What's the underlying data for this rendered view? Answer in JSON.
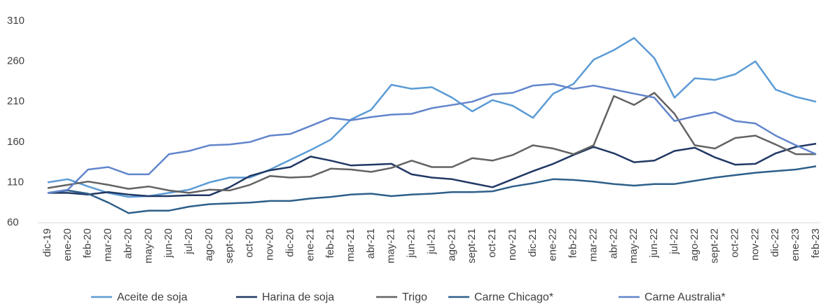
{
  "chart_data": {
    "type": "line",
    "categories": [
      "dic-19",
      "ene-20",
      "feb-20",
      "mar-20",
      "abr-20",
      "may-20",
      "jun-20",
      "jul-20",
      "ago-20",
      "sept-20",
      "oct-20",
      "nov-20",
      "dic-20",
      "ene-21",
      "feb-21",
      "mar-21",
      "abr-21",
      "may-21",
      "jun-21",
      "jul-21",
      "ago-21",
      "sept-21",
      "oct-21",
      "nov-21",
      "dic-21",
      "ene-22",
      "feb-22",
      "mar-22",
      "abr-22",
      "may-22",
      "jun-22",
      "jul-22",
      "ago-22",
      "sept-22",
      "oct-22",
      "nov-22",
      "dic-22",
      "ene-23",
      "feb-23"
    ],
    "series": [
      {
        "name": "Aceite de soja",
        "color": "#5b9bd5",
        "values": [
          110,
          114,
          105,
          97,
          92,
          93,
          97,
          101,
          110,
          116,
          116,
          126,
          138,
          150,
          163,
          188,
          200,
          231,
          226,
          228,
          215,
          198,
          212,
          205,
          190,
          220,
          232,
          262,
          274,
          289,
          264,
          215,
          239,
          237,
          244,
          260,
          225,
          216,
          210
        ]
      },
      {
        "name": "Harina de soja",
        "color": "#203864",
        "values": [
          97,
          97,
          95,
          98,
          95,
          93,
          93,
          94,
          94,
          104,
          118,
          125,
          129,
          142,
          137,
          131,
          132,
          133,
          120,
          116,
          114,
          109,
          104,
          114,
          124,
          133,
          144,
          154,
          146,
          135,
          137,
          149,
          153,
          141,
          132,
          133,
          146,
          154,
          158
        ]
      },
      {
        "name": "Trigo",
        "color": "#636363",
        "values": [
          103,
          107,
          111,
          107,
          102,
          105,
          100,
          97,
          101,
          100,
          107,
          118,
          116,
          117,
          127,
          126,
          123,
          128,
          137,
          129,
          129,
          140,
          137,
          144,
          156,
          152,
          145,
          156,
          217,
          206,
          221,
          195,
          156,
          152,
          165,
          168,
          157,
          145,
          145
        ]
      },
      {
        "name": "Carne Chicago*",
        "color": "#2e5f8a",
        "values": [
          97,
          100,
          96,
          85,
          72,
          75,
          75,
          80,
          83,
          84,
          85,
          87,
          87,
          90,
          92,
          95,
          96,
          93,
          95,
          96,
          98,
          98,
          99,
          105,
          109,
          114,
          113,
          111,
          108,
          106,
          108,
          108,
          112,
          116,
          119,
          122,
          124,
          126,
          130
        ]
      },
      {
        "name": "Carne Australia*",
        "color": "#6285cc",
        "values": [
          97,
          101,
          126,
          129,
          120,
          120,
          145,
          149,
          156,
          157,
          160,
          168,
          170,
          180,
          190,
          187,
          191,
          194,
          195,
          202,
          206,
          210,
          219,
          221,
          230,
          232,
          226,
          230,
          225,
          220,
          215,
          186,
          192,
          197,
          186,
          183,
          168,
          156,
          145
        ]
      }
    ],
    "ylim": [
      60,
      310
    ],
    "yticks": [
      60,
      110,
      160,
      210,
      260,
      310
    ],
    "grid": false,
    "legend": "bottom"
  }
}
